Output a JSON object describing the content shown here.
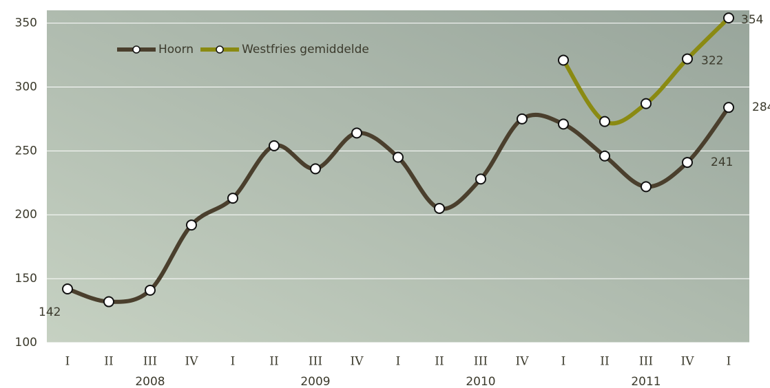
{
  "chart_data": {
    "type": "line",
    "categories": [
      "I",
      "II",
      "III",
      "IV",
      "I",
      "II",
      "III",
      "IV",
      "I",
      "II",
      "III",
      "IV",
      "I",
      "II",
      "III",
      "IV",
      "I"
    ],
    "years": [
      "2008",
      "2009",
      "2010",
      "2011"
    ],
    "series": [
      {
        "name": "Hoorn",
        "color": "#4a3f2d",
        "values": [
          142,
          132,
          141,
          192,
          213,
          254,
          236,
          264,
          245,
          205,
          228,
          275,
          271,
          246,
          222,
          241,
          284
        ]
      },
      {
        "name": "Westfries gemiddelde",
        "color": "#8a8a12",
        "values": [
          null,
          null,
          null,
          null,
          null,
          null,
          null,
          null,
          null,
          null,
          null,
          null,
          321,
          273,
          287,
          322,
          354
        ]
      }
    ],
    "ylim": [
      100,
      360
    ],
    "yticks": [
      100,
      150,
      200,
      250,
      300,
      350
    ],
    "grid": true,
    "legend": "top-left"
  }
}
